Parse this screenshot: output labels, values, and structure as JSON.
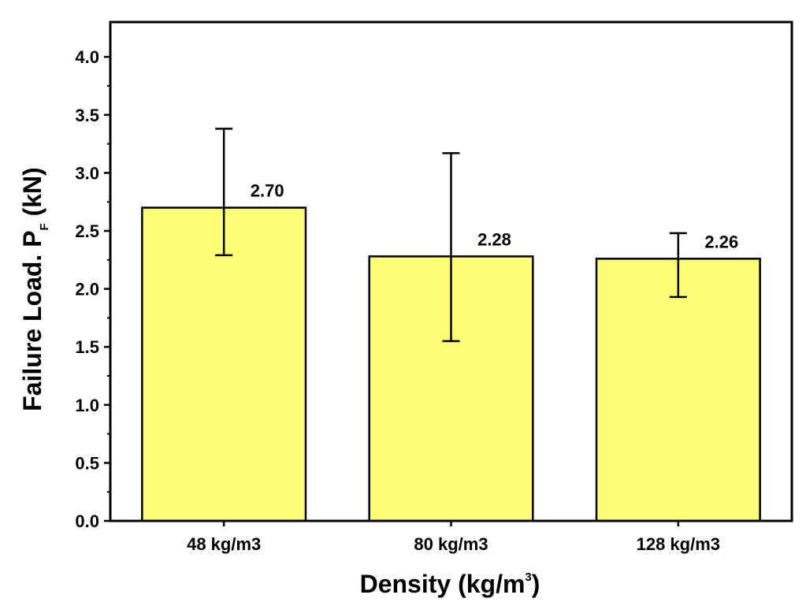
{
  "chart_data": {
    "type": "bar",
    "categories": [
      "48 kg/m3",
      "80 kg/m3",
      "128 kg/m3"
    ],
    "values": [
      2.7,
      2.28,
      2.26
    ],
    "error_bars": [
      {
        "low": 2.29,
        "high": 3.38
      },
      {
        "low": 1.55,
        "high": 3.17
      },
      {
        "low": 1.93,
        "high": 2.48
      }
    ],
    "data_labels": [
      "2.70",
      "2.28",
      "2.26"
    ],
    "ylim": [
      0,
      4.3
    ],
    "yticks": [
      0.0,
      0.5,
      1.0,
      1.5,
      2.0,
      2.5,
      3.0,
      3.5,
      4.0
    ],
    "ytick_labels": [
      "0.0",
      "0.5",
      "1.0",
      "1.5",
      "2.0",
      "2.5",
      "3.0",
      "3.5",
      "4.0"
    ],
    "xlabel": {
      "main": "Density (kg/m",
      "superscript": "3",
      "close": ")"
    },
    "ylabel": {
      "main": "Failure Load. P",
      "subscript": "F",
      "unit": " (kN)"
    },
    "title": "",
    "grid": false,
    "legend": "none",
    "colors": {
      "bar_fill": "#ffff77",
      "bar_stroke": "#000000",
      "axis": "#000000",
      "error_bar": "#000000"
    }
  }
}
